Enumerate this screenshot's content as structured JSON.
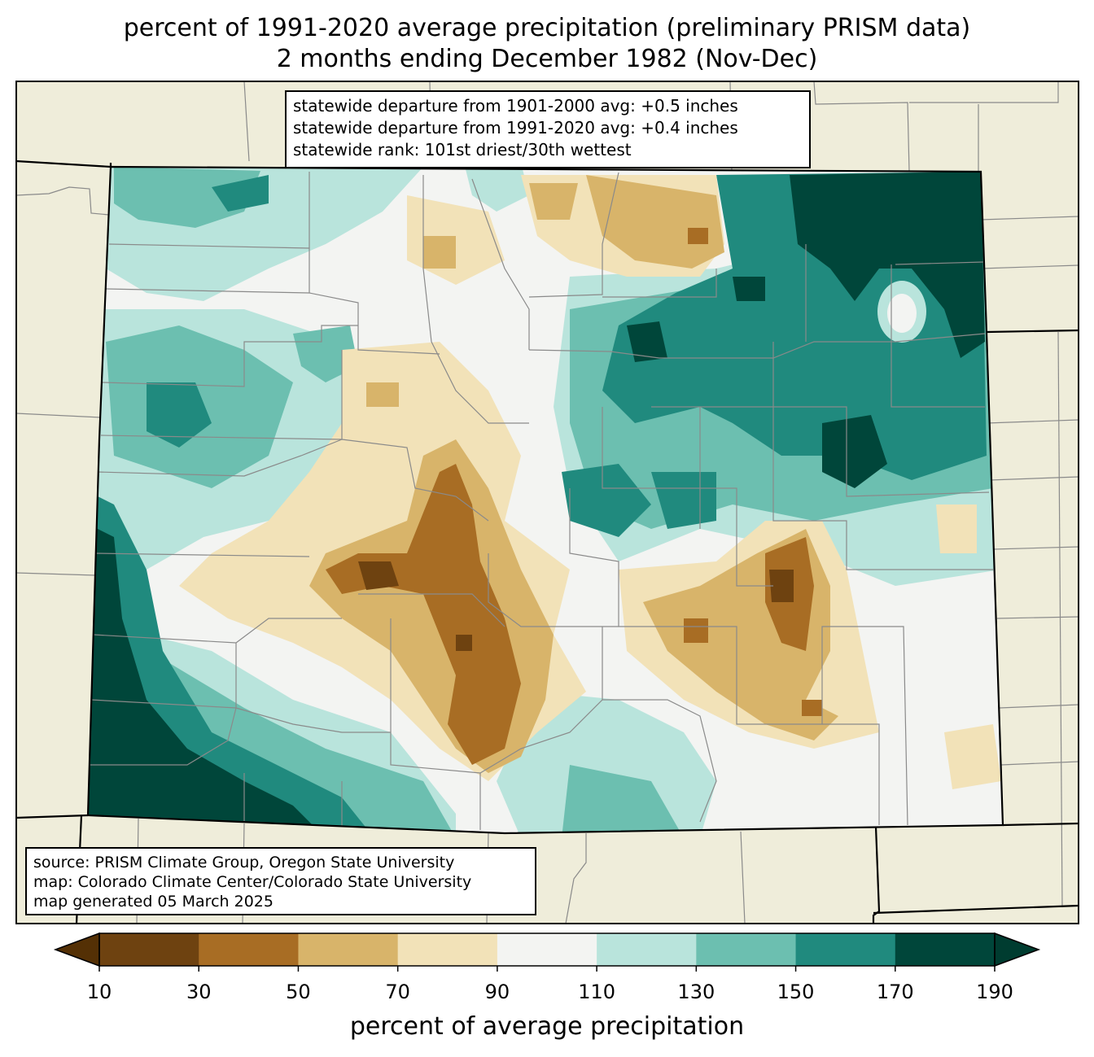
{
  "title": {
    "line1": "percent of 1991-2020 average precipitation (preliminary PRISM data)",
    "line2": "2 months ending December 1982 (Nov-Dec)"
  },
  "stats": {
    "line1": "statewide departure from 1901-2000 avg: +0.5 inches",
    "line2": "statewide departure from 1991-2020 avg: +0.4 inches",
    "line3": "statewide rank: 101st driest/30th wettest"
  },
  "source": {
    "line1": "source: PRISM Climate Group, Oregon State University",
    "line2": "map: Colorado Climate Center/Colorado State University",
    "line3": "map generated 05 March 2025"
  },
  "colorbar": {
    "label": "percent of average precipitation",
    "ticks": [
      "10",
      "30",
      "50",
      "70",
      "90",
      "110",
      "130",
      "150",
      "170",
      "190"
    ],
    "bins": [
      {
        "min": 10,
        "max": 30,
        "color": "#6e4210"
      },
      {
        "min": 30,
        "max": 50,
        "color": "#a86d24"
      },
      {
        "min": 50,
        "max": 70,
        "color": "#d8b46a"
      },
      {
        "min": 70,
        "max": 90,
        "color": "#f2e2b8"
      },
      {
        "min": 90,
        "max": 110,
        "color": "#f3f4f2"
      },
      {
        "min": 110,
        "max": 130,
        "color": "#b9e4dc"
      },
      {
        "min": 130,
        "max": 150,
        "color": "#6cbfb0"
      },
      {
        "min": 150,
        "max": 170,
        "color": "#208a7e"
      },
      {
        "min": 170,
        "max": 190,
        "color": "#00463a"
      }
    ],
    "under_color": "#543005",
    "over_color": "#003c30"
  },
  "colors": {
    "land": "#efedda",
    "county_lines": "#8a8a8a",
    "state_lines": "#000000"
  }
}
